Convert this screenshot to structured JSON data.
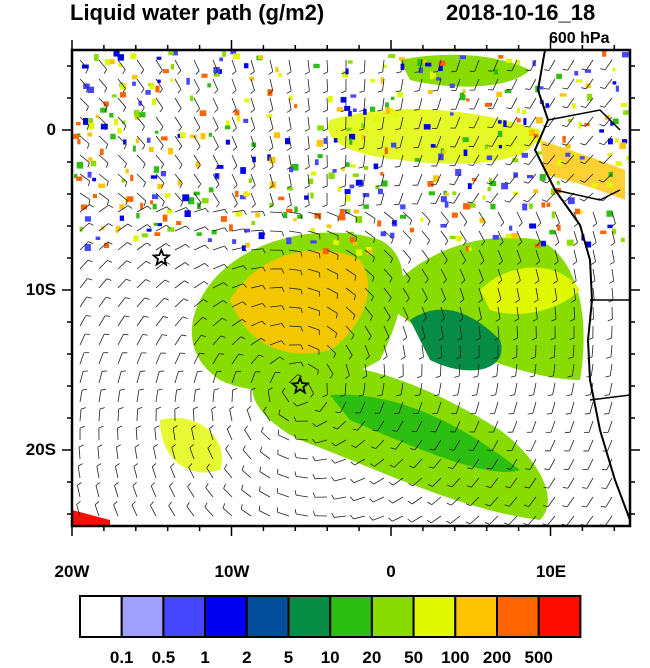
{
  "header": {
    "title": "Liquid water path (g/m2)",
    "datetime": "2018-10-16_18",
    "level": "600 hPa"
  },
  "map": {
    "lon_range": [
      -20,
      15
    ],
    "lat_range": [
      -25,
      5
    ],
    "y_ticks": [
      {
        "lat": 0,
        "label": "0"
      },
      {
        "lat": -10,
        "label": "10S"
      },
      {
        "lat": -20,
        "label": "20S"
      }
    ],
    "x_ticks": [
      {
        "lon": -20,
        "label": "20W"
      },
      {
        "lon": -10,
        "label": "10W"
      },
      {
        "lon": 0,
        "label": "0"
      },
      {
        "lon": 10,
        "label": "10E"
      }
    ],
    "markers": [
      {
        "name": "star",
        "lon": -14.4,
        "lat": -8
      },
      {
        "name": "star",
        "lon": -5.7,
        "lat": -16
      }
    ]
  },
  "colorbar": {
    "colors": [
      "#ffffff",
      "#a0a0ff",
      "#4646ff",
      "#0000f0",
      "#044c9c",
      "#068c44",
      "#2cbe10",
      "#88dc00",
      "#e0f800",
      "#ffc400",
      "#ff6400",
      "#ff0c00"
    ],
    "labels": [
      "0.1",
      "0.5",
      "1",
      "2",
      "5",
      "10",
      "20",
      "50",
      "100",
      "200",
      "500"
    ]
  }
}
